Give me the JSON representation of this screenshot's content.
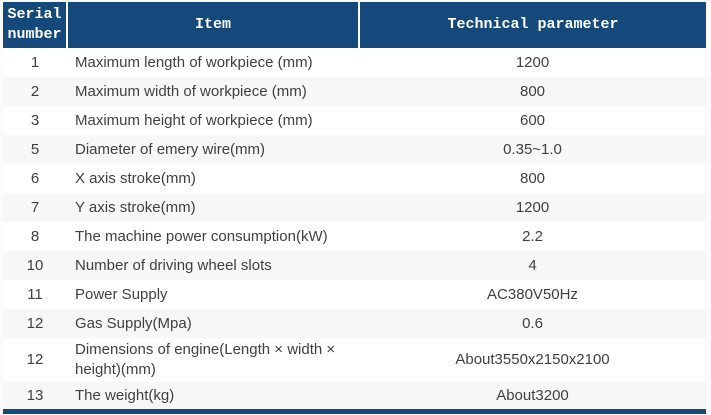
{
  "colors": {
    "header_bg": "#15497b",
    "header_text": "#ffffff",
    "row_alt_bg": "#f7f7f7",
    "body_text": "#3f3f3f",
    "bottom_border": "#174a77"
  },
  "table": {
    "headers": [
      "Serial number",
      "Item",
      "Technical parameter"
    ],
    "rows": [
      {
        "serial": "1",
        "item": "Maximum length of workpiece (mm)",
        "value": "1200"
      },
      {
        "serial": "2",
        "item": "Maximum width of workpiece (mm)",
        "value": "800"
      },
      {
        "serial": "3",
        "item": "Maximum height of workpiece (mm)",
        "value": "600"
      },
      {
        "serial": "5",
        "item": "Diameter of emery wire(mm)",
        "value": "0.35~1.0"
      },
      {
        "serial": "6",
        "item": "X axis stroke(mm)",
        "value": "800"
      },
      {
        "serial": "7",
        "item": "Y axis stroke(mm)",
        "value": "1200"
      },
      {
        "serial": "8",
        "item": "The machine power consumption(kW)",
        "value": "2.2"
      },
      {
        "serial": "10",
        "item": "Number of driving wheel slots",
        "value": "4"
      },
      {
        "serial": "11",
        "item": "Power Supply",
        "value": "AC380V50Hz"
      },
      {
        "serial": "12",
        "item": "Gas Supply(Mpa)",
        "value": "0.6"
      },
      {
        "serial": "12",
        "item": "Dimensions of engine(Length × width × height)(mm)",
        "value": "About3550x2150x2100"
      },
      {
        "serial": "13",
        "item": "The weight(kg)",
        "value": "About3200"
      }
    ]
  }
}
